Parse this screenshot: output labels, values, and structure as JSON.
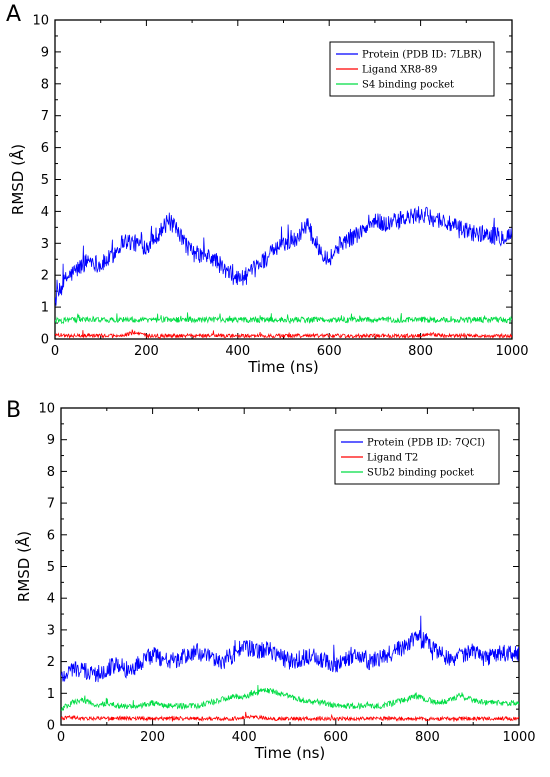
{
  "chart_data": [
    {
      "panel": "A",
      "type": "line",
      "xlabel": "Time (ns)",
      "ylabel": "RMSD (Å)",
      "xlim": [
        0,
        1000
      ],
      "ylim": [
        0,
        10
      ],
      "x_ticks": [
        0,
        200,
        400,
        600,
        800,
        1000
      ],
      "y_ticks": [
        0,
        1,
        2,
        3,
        4,
        5,
        6,
        7,
        8,
        9,
        10
      ],
      "legend_position": "top-right",
      "x": [
        0,
        25,
        50,
        75,
        100,
        125,
        150,
        175,
        200,
        225,
        250,
        275,
        300,
        325,
        350,
        375,
        400,
        425,
        450,
        475,
        500,
        525,
        550,
        575,
        600,
        625,
        650,
        675,
        700,
        725,
        750,
        775,
        800,
        825,
        850,
        875,
        900,
        925,
        950,
        975,
        1000
      ],
      "series": [
        {
          "name": "Protein (PDB ID: 7LBR)",
          "color": "#0000ff",
          "values": [
            1.2,
            1.9,
            2.2,
            2.5,
            2.3,
            2.6,
            3.1,
            3.0,
            2.9,
            3.3,
            3.7,
            3.2,
            2.7,
            2.6,
            2.5,
            2.1,
            1.9,
            2.0,
            2.4,
            2.7,
            3.0,
            3.1,
            3.6,
            2.9,
            2.5,
            3.0,
            3.2,
            3.4,
            3.7,
            3.6,
            3.7,
            3.8,
            3.9,
            3.8,
            3.7,
            3.5,
            3.4,
            3.3,
            3.3,
            3.2,
            3.3
          ]
        },
        {
          "name": "Ligand XR8-89",
          "color": "#ff0000",
          "values": [
            0.15,
            0.1,
            0.1,
            0.12,
            0.1,
            0.1,
            0.12,
            0.2,
            0.1,
            0.1,
            0.1,
            0.1,
            0.1,
            0.1,
            0.1,
            0.1,
            0.1,
            0.1,
            0.1,
            0.1,
            0.1,
            0.1,
            0.1,
            0.1,
            0.1,
            0.1,
            0.1,
            0.1,
            0.1,
            0.1,
            0.1,
            0.1,
            0.1,
            0.15,
            0.1,
            0.1,
            0.1,
            0.1,
            0.1,
            0.1,
            0.1
          ]
        },
        {
          "name": "S4 binding pocket",
          "color": "#00dd44",
          "values": [
            0.55,
            0.6,
            0.6,
            0.62,
            0.6,
            0.6,
            0.62,
            0.6,
            0.6,
            0.6,
            0.62,
            0.6,
            0.6,
            0.6,
            0.6,
            0.6,
            0.6,
            0.6,
            0.6,
            0.6,
            0.6,
            0.6,
            0.6,
            0.6,
            0.6,
            0.6,
            0.6,
            0.6,
            0.6,
            0.6,
            0.6,
            0.6,
            0.6,
            0.6,
            0.6,
            0.6,
            0.6,
            0.6,
            0.6,
            0.6,
            0.6
          ]
        }
      ]
    },
    {
      "panel": "B",
      "type": "line",
      "xlabel": "Time (ns)",
      "ylabel": "RMSD (Å)",
      "xlim": [
        0,
        1000
      ],
      "ylim": [
        0,
        10
      ],
      "x_ticks": [
        0,
        200,
        400,
        600,
        800,
        1000
      ],
      "y_ticks": [
        0,
        1,
        2,
        3,
        4,
        5,
        6,
        7,
        8,
        9,
        10
      ],
      "legend_position": "top-right",
      "x": [
        0,
        25,
        50,
        75,
        100,
        125,
        150,
        175,
        200,
        225,
        250,
        275,
        300,
        325,
        350,
        375,
        400,
        425,
        450,
        475,
        500,
        525,
        550,
        575,
        600,
        625,
        650,
        675,
        700,
        725,
        750,
        775,
        800,
        825,
        850,
        875,
        900,
        925,
        950,
        975,
        1000
      ],
      "series": [
        {
          "name": "Protein (PDB ID: 7QCI)",
          "color": "#0000ff",
          "values": [
            1.5,
            1.8,
            1.7,
            1.6,
            1.8,
            1.9,
            1.7,
            2.0,
            2.2,
            2.1,
            2.0,
            2.2,
            2.3,
            2.1,
            2.0,
            2.2,
            2.5,
            2.3,
            2.4,
            2.2,
            2.0,
            2.1,
            2.2,
            2.0,
            1.9,
            2.1,
            2.2,
            2.0,
            2.1,
            2.3,
            2.5,
            2.8,
            2.6,
            2.3,
            2.1,
            2.2,
            2.3,
            2.1,
            2.2,
            2.3,
            2.2
          ]
        },
        {
          "name": "Ligand T2",
          "color": "#ff0000",
          "values": [
            0.2,
            0.25,
            0.2,
            0.22,
            0.2,
            0.2,
            0.22,
            0.2,
            0.2,
            0.2,
            0.22,
            0.2,
            0.2,
            0.2,
            0.2,
            0.2,
            0.25,
            0.25,
            0.2,
            0.2,
            0.2,
            0.2,
            0.2,
            0.2,
            0.2,
            0.2,
            0.2,
            0.2,
            0.2,
            0.2,
            0.2,
            0.2,
            0.2,
            0.2,
            0.2,
            0.2,
            0.2,
            0.2,
            0.2,
            0.2,
            0.2
          ]
        },
        {
          "name": "SUb2 binding pocket",
          "color": "#00dd44",
          "values": [
            0.5,
            0.7,
            0.8,
            0.6,
            0.7,
            0.6,
            0.6,
            0.6,
            0.7,
            0.6,
            0.6,
            0.6,
            0.6,
            0.7,
            0.8,
            0.9,
            0.9,
            1.0,
            1.1,
            1.0,
            0.9,
            0.8,
            0.7,
            0.7,
            0.6,
            0.6,
            0.6,
            0.6,
            0.6,
            0.7,
            0.8,
            0.9,
            0.8,
            0.7,
            0.8,
            0.9,
            0.8,
            0.7,
            0.7,
            0.7,
            0.7
          ]
        }
      ]
    }
  ],
  "panels": [
    {
      "letter": "A"
    },
    {
      "letter": "B"
    }
  ]
}
